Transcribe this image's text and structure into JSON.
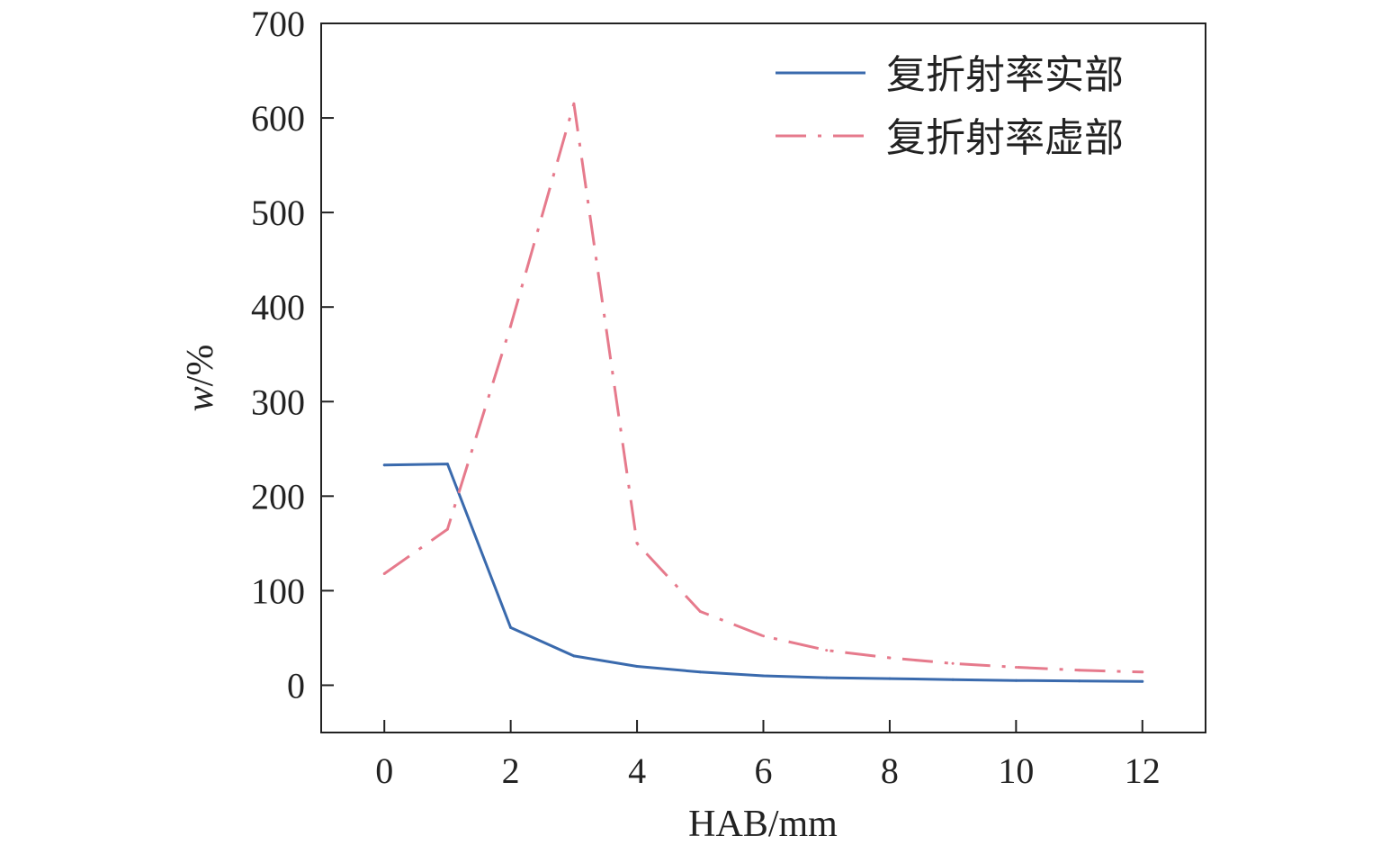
{
  "chart_data": {
    "type": "line",
    "title": "",
    "xlabel": "HAB/mm",
    "ylabel_var": "w",
    "ylabel_unit": "/%",
    "xlim": [
      -1,
      13
    ],
    "ylim": [
      -50,
      700
    ],
    "xticks": [
      0,
      2,
      4,
      6,
      8,
      10,
      12
    ],
    "yticks": [
      0,
      100,
      200,
      300,
      400,
      500,
      600,
      700
    ],
    "grid": false,
    "legend_position": "top-right",
    "x": [
      0,
      1,
      2,
      3,
      4,
      5,
      6,
      7,
      8,
      9,
      10,
      11,
      12
    ],
    "series": [
      {
        "name": "复折射率实部",
        "color": "#3a6aad",
        "style": "solid",
        "values": [
          233,
          234,
          61,
          31,
          20,
          14,
          10,
          8,
          7,
          6,
          5,
          4.5,
          4
        ]
      },
      {
        "name": "复折射率虚部",
        "color": "#e67a8c",
        "style": "dashdot",
        "values": [
          118,
          165,
          380,
          615,
          150,
          78,
          52,
          37,
          29,
          23,
          19,
          16,
          14
        ]
      }
    ]
  }
}
